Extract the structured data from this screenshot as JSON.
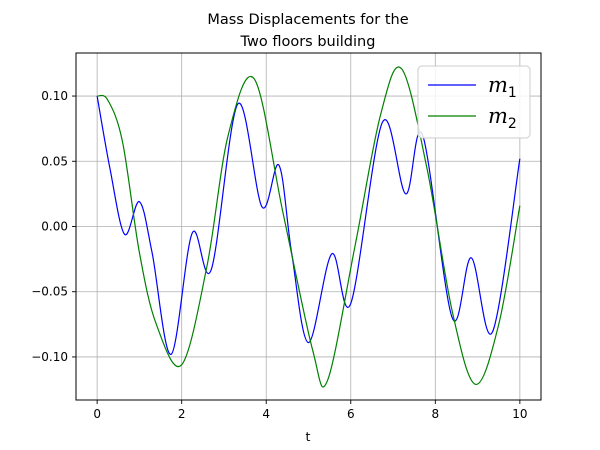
{
  "chart_data": {
    "type": "line",
    "title_lines": [
      "Mass Displacements for the",
      "Two floors building"
    ],
    "xlabel": "t",
    "ylabel": "",
    "xlim": [
      -0.5,
      10.5
    ],
    "ylim": [
      -0.133,
      0.133
    ],
    "xticks": [
      0,
      2,
      4,
      6,
      8,
      10
    ],
    "xtick_labels": [
      "0",
      "2",
      "4",
      "6",
      "8",
      "10"
    ],
    "yticks": [
      -0.1,
      -0.05,
      0.0,
      0.05,
      0.1
    ],
    "ytick_labels": [
      "−0.10",
      "−0.05",
      "0.00",
      "0.05",
      "0.10"
    ],
    "grid": true,
    "legend_position": "top-right",
    "series": [
      {
        "name": "m",
        "name_sub": "1",
        "color": "#0000ff",
        "x": [
          0,
          0.3,
          0.65,
          1.0,
          1.3,
          1.75,
          2.25,
          2.7,
          3.33,
          3.9,
          4.3,
          4.6,
          5.0,
          5.55,
          6.0,
          6.75,
          7.3,
          7.7,
          8.4,
          8.85,
          9.35,
          10.0
        ],
        "y": [
          0.1,
          0.045,
          -0.006,
          0.019,
          -0.02,
          -0.098,
          -0.005,
          -0.033,
          0.094,
          0.015,
          0.047,
          -0.02,
          -0.089,
          -0.021,
          -0.059,
          0.08,
          0.025,
          0.07,
          -0.07,
          -0.024,
          -0.081,
          0.052
        ]
      },
      {
        "name": "m",
        "name_sub": "2",
        "color": "#008000",
        "x": [
          0,
          0.25,
          0.6,
          1.0,
          1.4,
          2.0,
          2.6,
          3.1,
          3.72,
          4.4,
          5.1,
          5.45,
          6.1,
          6.7,
          7.2,
          7.8,
          8.4,
          8.95,
          9.5,
          10.0
        ],
        "y": [
          0.1,
          0.097,
          0.065,
          -0.02,
          -0.075,
          -0.106,
          -0.03,
          0.07,
          0.113,
          0.01,
          -0.095,
          -0.118,
          -0.015,
          0.085,
          0.121,
          0.045,
          -0.065,
          -0.121,
          -0.075,
          0.016
        ]
      }
    ]
  }
}
